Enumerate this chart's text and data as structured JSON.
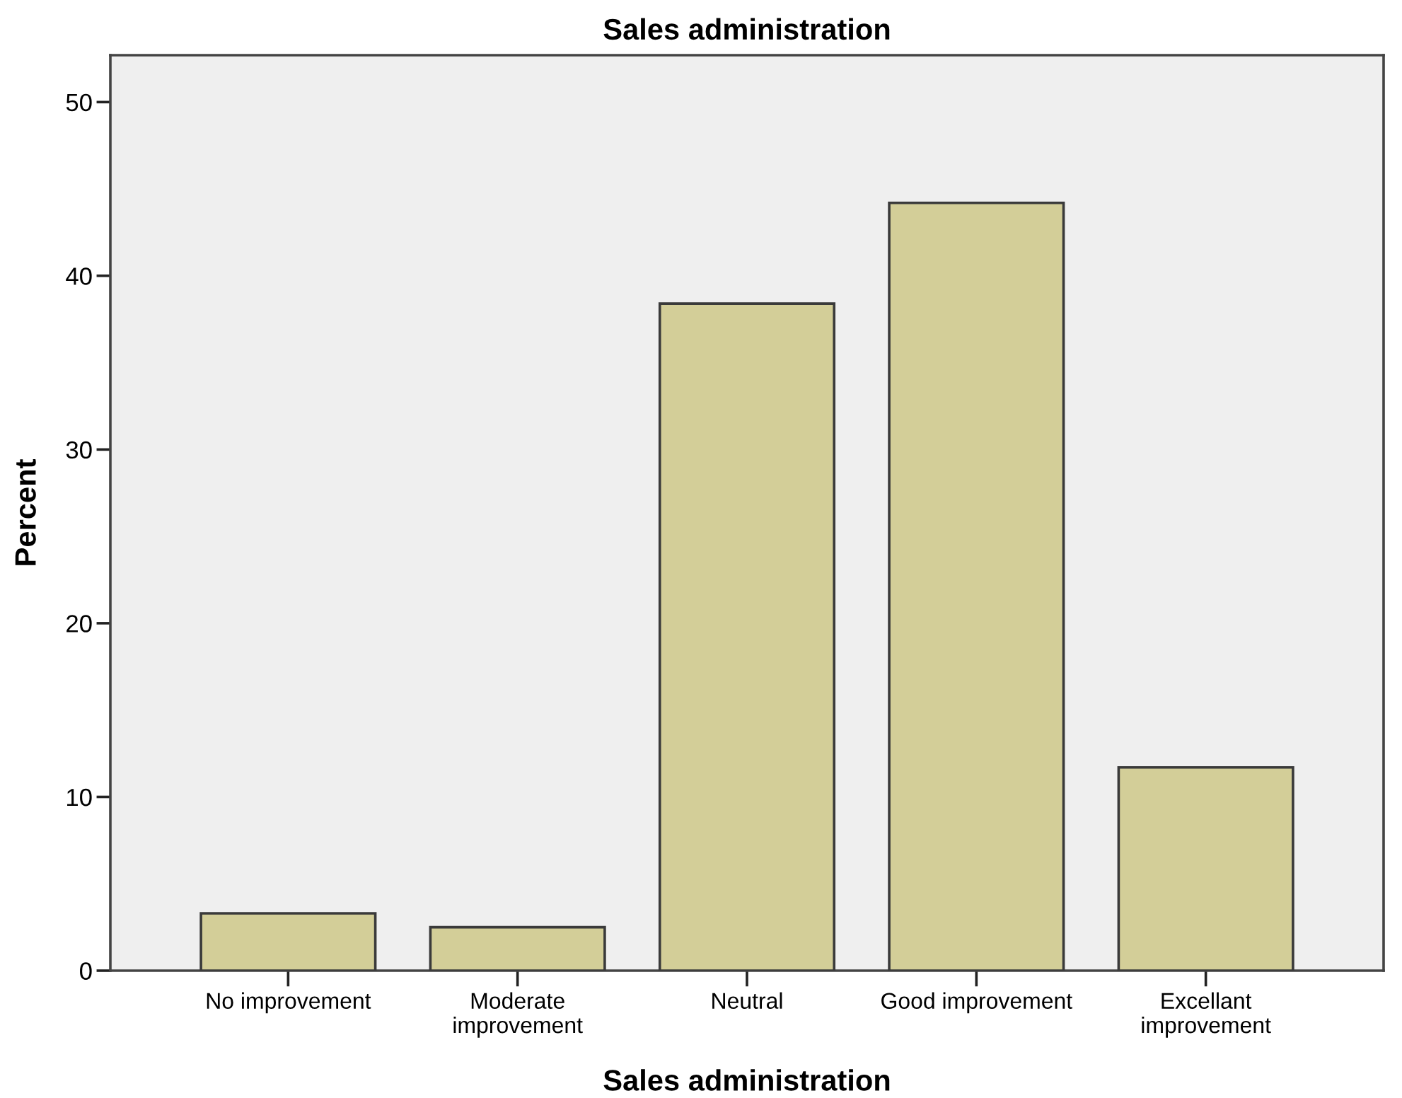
{
  "chart_data": {
    "type": "bar",
    "title": "Sales administration",
    "xlabel": "Sales administration",
    "ylabel": "Percent",
    "categories": [
      "No improvement",
      "Moderate\nimprovement",
      "Neutral",
      "Good improvement",
      "Excellant\nimprovement"
    ],
    "values": [
      3.3,
      2.5,
      38.4,
      44.2,
      11.7
    ],
    "color": "#d3ce98",
    "ylim": [
      0,
      52.7
    ],
    "yticks": [
      0,
      10,
      20,
      30,
      40,
      50
    ],
    "grid": false,
    "legend": false
  }
}
